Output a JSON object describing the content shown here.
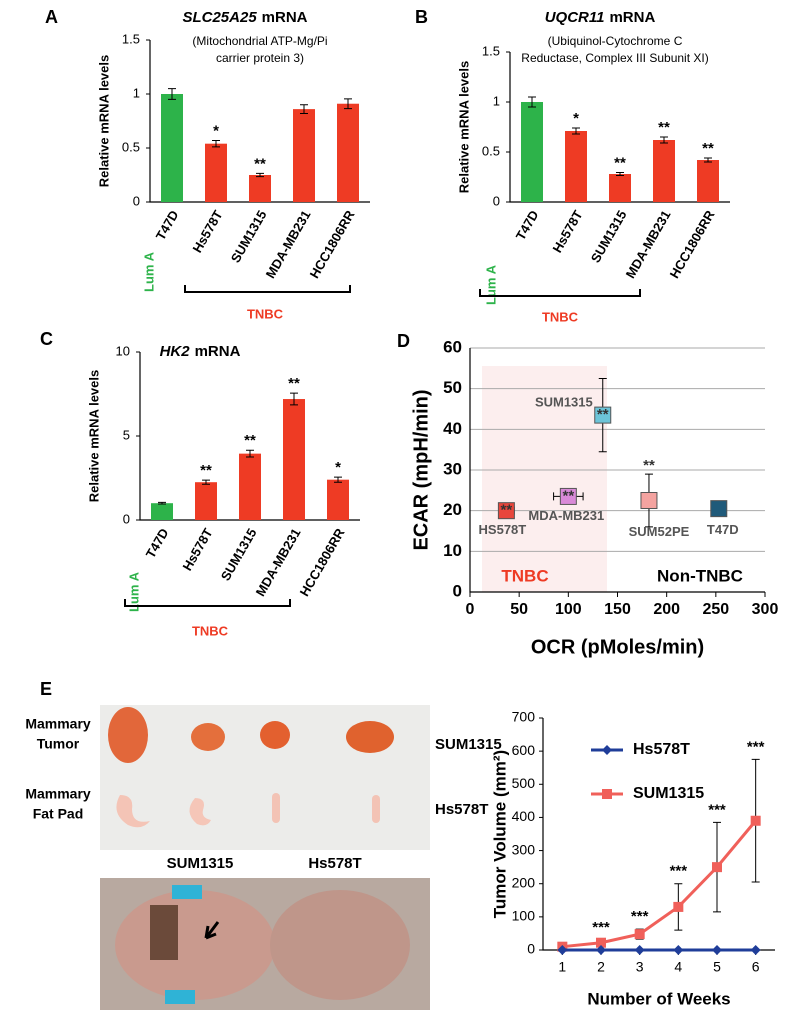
{
  "chart_data": [
    {
      "type": "bar",
      "label": "A",
      "title_gene": "SLC25A25",
      "title_rest": "mRNA",
      "subtitle": [
        "(Mitochondrial ATP-Mg/Pi",
        "carrier protein 3)"
      ],
      "ylabel": "Relative mRNA levels",
      "categories": [
        "T47D",
        "Hs578T",
        "SUM1315",
        "MDA-MB231",
        "HCC1806RR"
      ],
      "values": [
        1.0,
        0.54,
        0.25,
        0.86,
        0.91
      ],
      "errors": [
        0.05,
        0.03,
        0.015,
        0.04,
        0.045
      ],
      "annotations": [
        null,
        "*",
        "**",
        null,
        null
      ],
      "colors": [
        "#2db34a",
        "#ee3b24",
        "#ee3b24",
        "#ee3b24",
        "#ee3b24"
      ],
      "ylim": [
        0,
        1.5
      ],
      "yticks": [
        0,
        0.5,
        1,
        1.5
      ],
      "groups": [
        {
          "label": "Lum A",
          "color": "#2db34a"
        },
        {
          "label": "TNBC",
          "color": "#ee3b24"
        }
      ]
    },
    {
      "type": "bar",
      "label": "B",
      "title_gene": "UQCR11",
      "title_rest": "mRNA",
      "subtitle": [
        "(Ubiquinol-Cytochrome C",
        "Reductase, Complex III Subunit XI)"
      ],
      "ylabel": "Relative mRNA levels",
      "categories": [
        "T47D",
        "Hs578T",
        "SUM1315",
        "MDA-MB231",
        "HCC1806RR"
      ],
      "values": [
        1.0,
        0.71,
        0.28,
        0.62,
        0.42
      ],
      "errors": [
        0.05,
        0.03,
        0.015,
        0.03,
        0.02
      ],
      "annotations": [
        null,
        "*",
        "**",
        "**",
        "**"
      ],
      "colors": [
        "#2db34a",
        "#ee3b24",
        "#ee3b24",
        "#ee3b24",
        "#ee3b24"
      ],
      "ylim": [
        0,
        1.5
      ],
      "yticks": [
        0,
        0.5,
        1,
        1.5
      ],
      "groups": [
        {
          "label": "Lum A",
          "color": "#2db34a"
        },
        {
          "label": "TNBC",
          "color": "#ee3b24"
        }
      ]
    },
    {
      "type": "bar",
      "label": "C",
      "title_gene": "HK2",
      "title_rest": "mRNA",
      "subtitle": [],
      "ylabel": "Relative mRNA levels",
      "categories": [
        "T47D",
        "Hs578T",
        "SUM1315",
        "MDA-MB231",
        "HCC1806RR"
      ],
      "values": [
        1.0,
        2.25,
        3.95,
        7.2,
        2.4
      ],
      "errors": [
        0.05,
        0.12,
        0.2,
        0.35,
        0.15
      ],
      "annotations": [
        null,
        "**",
        "**",
        "**",
        "*"
      ],
      "colors": [
        "#2db34a",
        "#ee3b24",
        "#ee3b24",
        "#ee3b24",
        "#ee3b24"
      ],
      "ylim": [
        0,
        10
      ],
      "yticks": [
        0,
        5,
        10
      ],
      "groups": [
        {
          "label": "Lum A",
          "color": "#2db34a"
        },
        {
          "label": "TNBC",
          "color": "#ee3b24"
        }
      ]
    },
    {
      "type": "scatter",
      "label": "D",
      "xlabel": "OCR (pMoles/min)",
      "ylabel": "ECAR (mpH/min)",
      "series": [
        {
          "name": "HS578T",
          "color": "#e8463c",
          "x": [
            37
          ],
          "values": [
            20
          ],
          "xerr": [
            8
          ],
          "yerr": [
            1.5
          ],
          "annotations": [
            "**"
          ]
        },
        {
          "name": "MDA-MB231",
          "color": "#d98ad8",
          "x": [
            100
          ],
          "values": [
            23.5
          ],
          "xerr": [
            15
          ],
          "yerr": [
            1.5
          ],
          "annotations": [
            "**"
          ]
        },
        {
          "name": "SUM1315",
          "color": "#6cc4d8",
          "x": [
            135
          ],
          "values": [
            43.5
          ],
          "xerr": [
            5
          ],
          "yerr": [
            9
          ],
          "annotations": [
            "**"
          ]
        },
        {
          "name": "SUM52PE",
          "color": "#f4a3a0",
          "x": [
            182
          ],
          "values": [
            22.5
          ],
          "xerr": [
            6
          ],
          "yerr": [
            6.5
          ],
          "annotations": [
            "**"
          ]
        },
        {
          "name": "T47D",
          "color": "#1f5a7a",
          "x": [
            253
          ],
          "values": [
            20.5
          ],
          "xerr": [
            6
          ],
          "yerr": [
            1.5
          ],
          "annotations": [
            null
          ]
        }
      ],
      "regions": [
        {
          "label": "TNBC",
          "color": "#ee3b24"
        },
        {
          "label": "Non-TNBC",
          "color": "#000000"
        }
      ],
      "xlim": [
        0,
        300
      ],
      "xticks": [
        0,
        50,
        100,
        150,
        200,
        250,
        300
      ],
      "ylim": [
        0,
        60
      ],
      "yticks": [
        0,
        10,
        20,
        30,
        40,
        50,
        60
      ],
      "grid": true
    },
    {
      "type": "line",
      "xlabel": "Number of Weeks",
      "ylabel": "Tumor Volume (mm²)",
      "x": [
        1,
        2,
        3,
        4,
        5,
        6
      ],
      "series": [
        {
          "name": "Hs578T",
          "color": "#1f3d99",
          "marker": "diamond",
          "values": [
            0,
            0,
            0,
            0,
            0,
            0
          ]
        },
        {
          "name": "SUM1315",
          "color": "#f0605a",
          "marker": "square",
          "values": [
            10,
            22,
            48,
            130,
            250,
            390
          ],
          "errors": [
            5,
            8,
            15,
            70,
            135,
            185
          ],
          "annotations": [
            null,
            "***",
            "***",
            "***",
            "***",
            "***"
          ]
        }
      ],
      "xlim": [
        0.5,
        6.5
      ],
      "xticks": [
        1,
        2,
        3,
        4,
        5,
        6
      ],
      "ylim": [
        0,
        700
      ],
      "yticks": [
        0,
        100,
        200,
        300,
        400,
        500,
        600,
        700
      ],
      "legend": "upper left"
    }
  ],
  "photo_panel": {
    "label": "E",
    "row_labels": [
      [
        "Mammary",
        "Tumor"
      ],
      [
        "Mammary",
        "Fat Pad"
      ]
    ],
    "side_labels": [
      "SUM1315",
      "Hs578T"
    ],
    "bottom_labels": [
      "SUM1315",
      "Hs578T"
    ]
  }
}
